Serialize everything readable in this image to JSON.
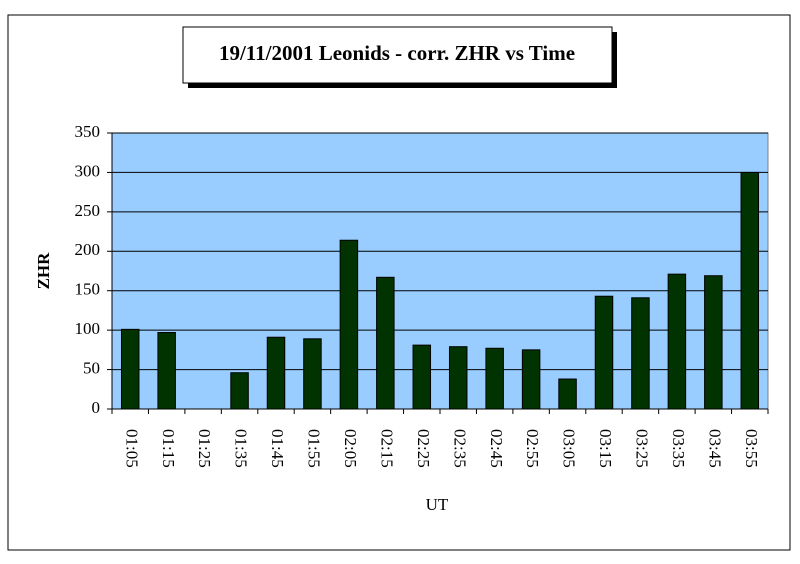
{
  "chart_data": {
    "type": "bar",
    "title": "19/11/2001 Leonids - corr. ZHR vs Time",
    "x_label": "UT",
    "y_label": "ZHR",
    "categories": [
      "01:05",
      "01:15",
      "01:25",
      "01:35",
      "01:45",
      "01:55",
      "02:05",
      "02:15",
      "02:25",
      "02:35",
      "02:45",
      "02:55",
      "03:05",
      "03:15",
      "03:25",
      "03:35",
      "03:45",
      "03:55"
    ],
    "values": [
      101,
      97,
      null,
      46,
      91,
      89,
      214,
      167,
      81,
      79,
      77,
      75,
      38,
      143,
      141,
      171,
      169,
      300
    ],
    "color": "#003300",
    "ylim": [
      0,
      350
    ],
    "yticks": [
      0,
      50,
      100,
      150,
      200,
      250,
      300,
      350
    ],
    "grid": true
  }
}
